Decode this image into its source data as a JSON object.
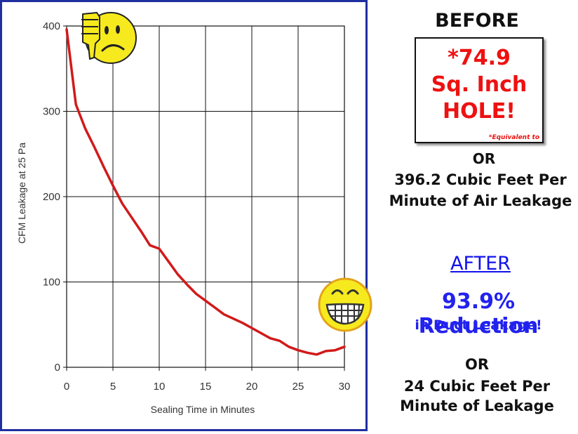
{
  "chart_data": {
    "type": "line",
    "title": "",
    "xlabel": "Sealing Time in Minutes",
    "ylabel": "CFM Leakage at 25 Pa",
    "xlim": [
      0,
      30
    ],
    "ylim": [
      0,
      400
    ],
    "x_ticks": [
      0,
      5,
      10,
      15,
      20,
      25,
      30
    ],
    "y_ticks": [
      0,
      100,
      200,
      300,
      400
    ],
    "x_tick_labels": [
      "0",
      "5",
      "10",
      "15",
      "20",
      "25",
      "30"
    ],
    "y_tick_labels": [
      "0",
      "100",
      "200",
      "300",
      "400"
    ],
    "grid": true,
    "series": [
      {
        "name": "CFM Leakage",
        "color": "#d11a1a",
        "x": [
          0,
          1,
          2,
          3,
          4,
          5,
          6,
          7,
          8,
          9,
          10,
          11,
          12,
          13,
          14,
          15,
          16,
          17,
          18,
          19,
          20,
          21,
          22,
          23,
          24,
          25,
          26,
          27,
          28,
          29,
          30
        ],
        "y": [
          396,
          308,
          280,
          258,
          235,
          213,
          192,
          176,
          160,
          143,
          139,
          124,
          109,
          97,
          86,
          78,
          70,
          62,
          57,
          52,
          46,
          40,
          34,
          31,
          24,
          20,
          17,
          15,
          19,
          20,
          24
        ]
      }
    ]
  },
  "panel": {
    "before_heading": "BEFORE",
    "box_line1": "*74.9",
    "box_line2": "Sq. Inch",
    "box_line3": "HOLE!",
    "box_footnote": "*Equivalent to",
    "or_1": "OR",
    "leak_before_1": "396.2 Cubic Feet Per",
    "leak_before_2": "Minute of Air Leakage",
    "after_heading": "AFTER",
    "reduction_1": "93.9% Reduction",
    "reduction_2": "in Duct Leakage!",
    "or_2": "OR",
    "leak_after_1": "24 Cubic Feet Per",
    "leak_after_2": "Minute of Leakage"
  },
  "icons": {
    "thumbs": "thumbs-down-frown-icon",
    "grin": "grinning-face-icon"
  },
  "colors": {
    "frame": "#1f2fa0",
    "line": "#d11a1a",
    "red_text": "#ee1111",
    "blue_text": "#2222ee",
    "emoji_yellow": "#f6ea1e"
  }
}
